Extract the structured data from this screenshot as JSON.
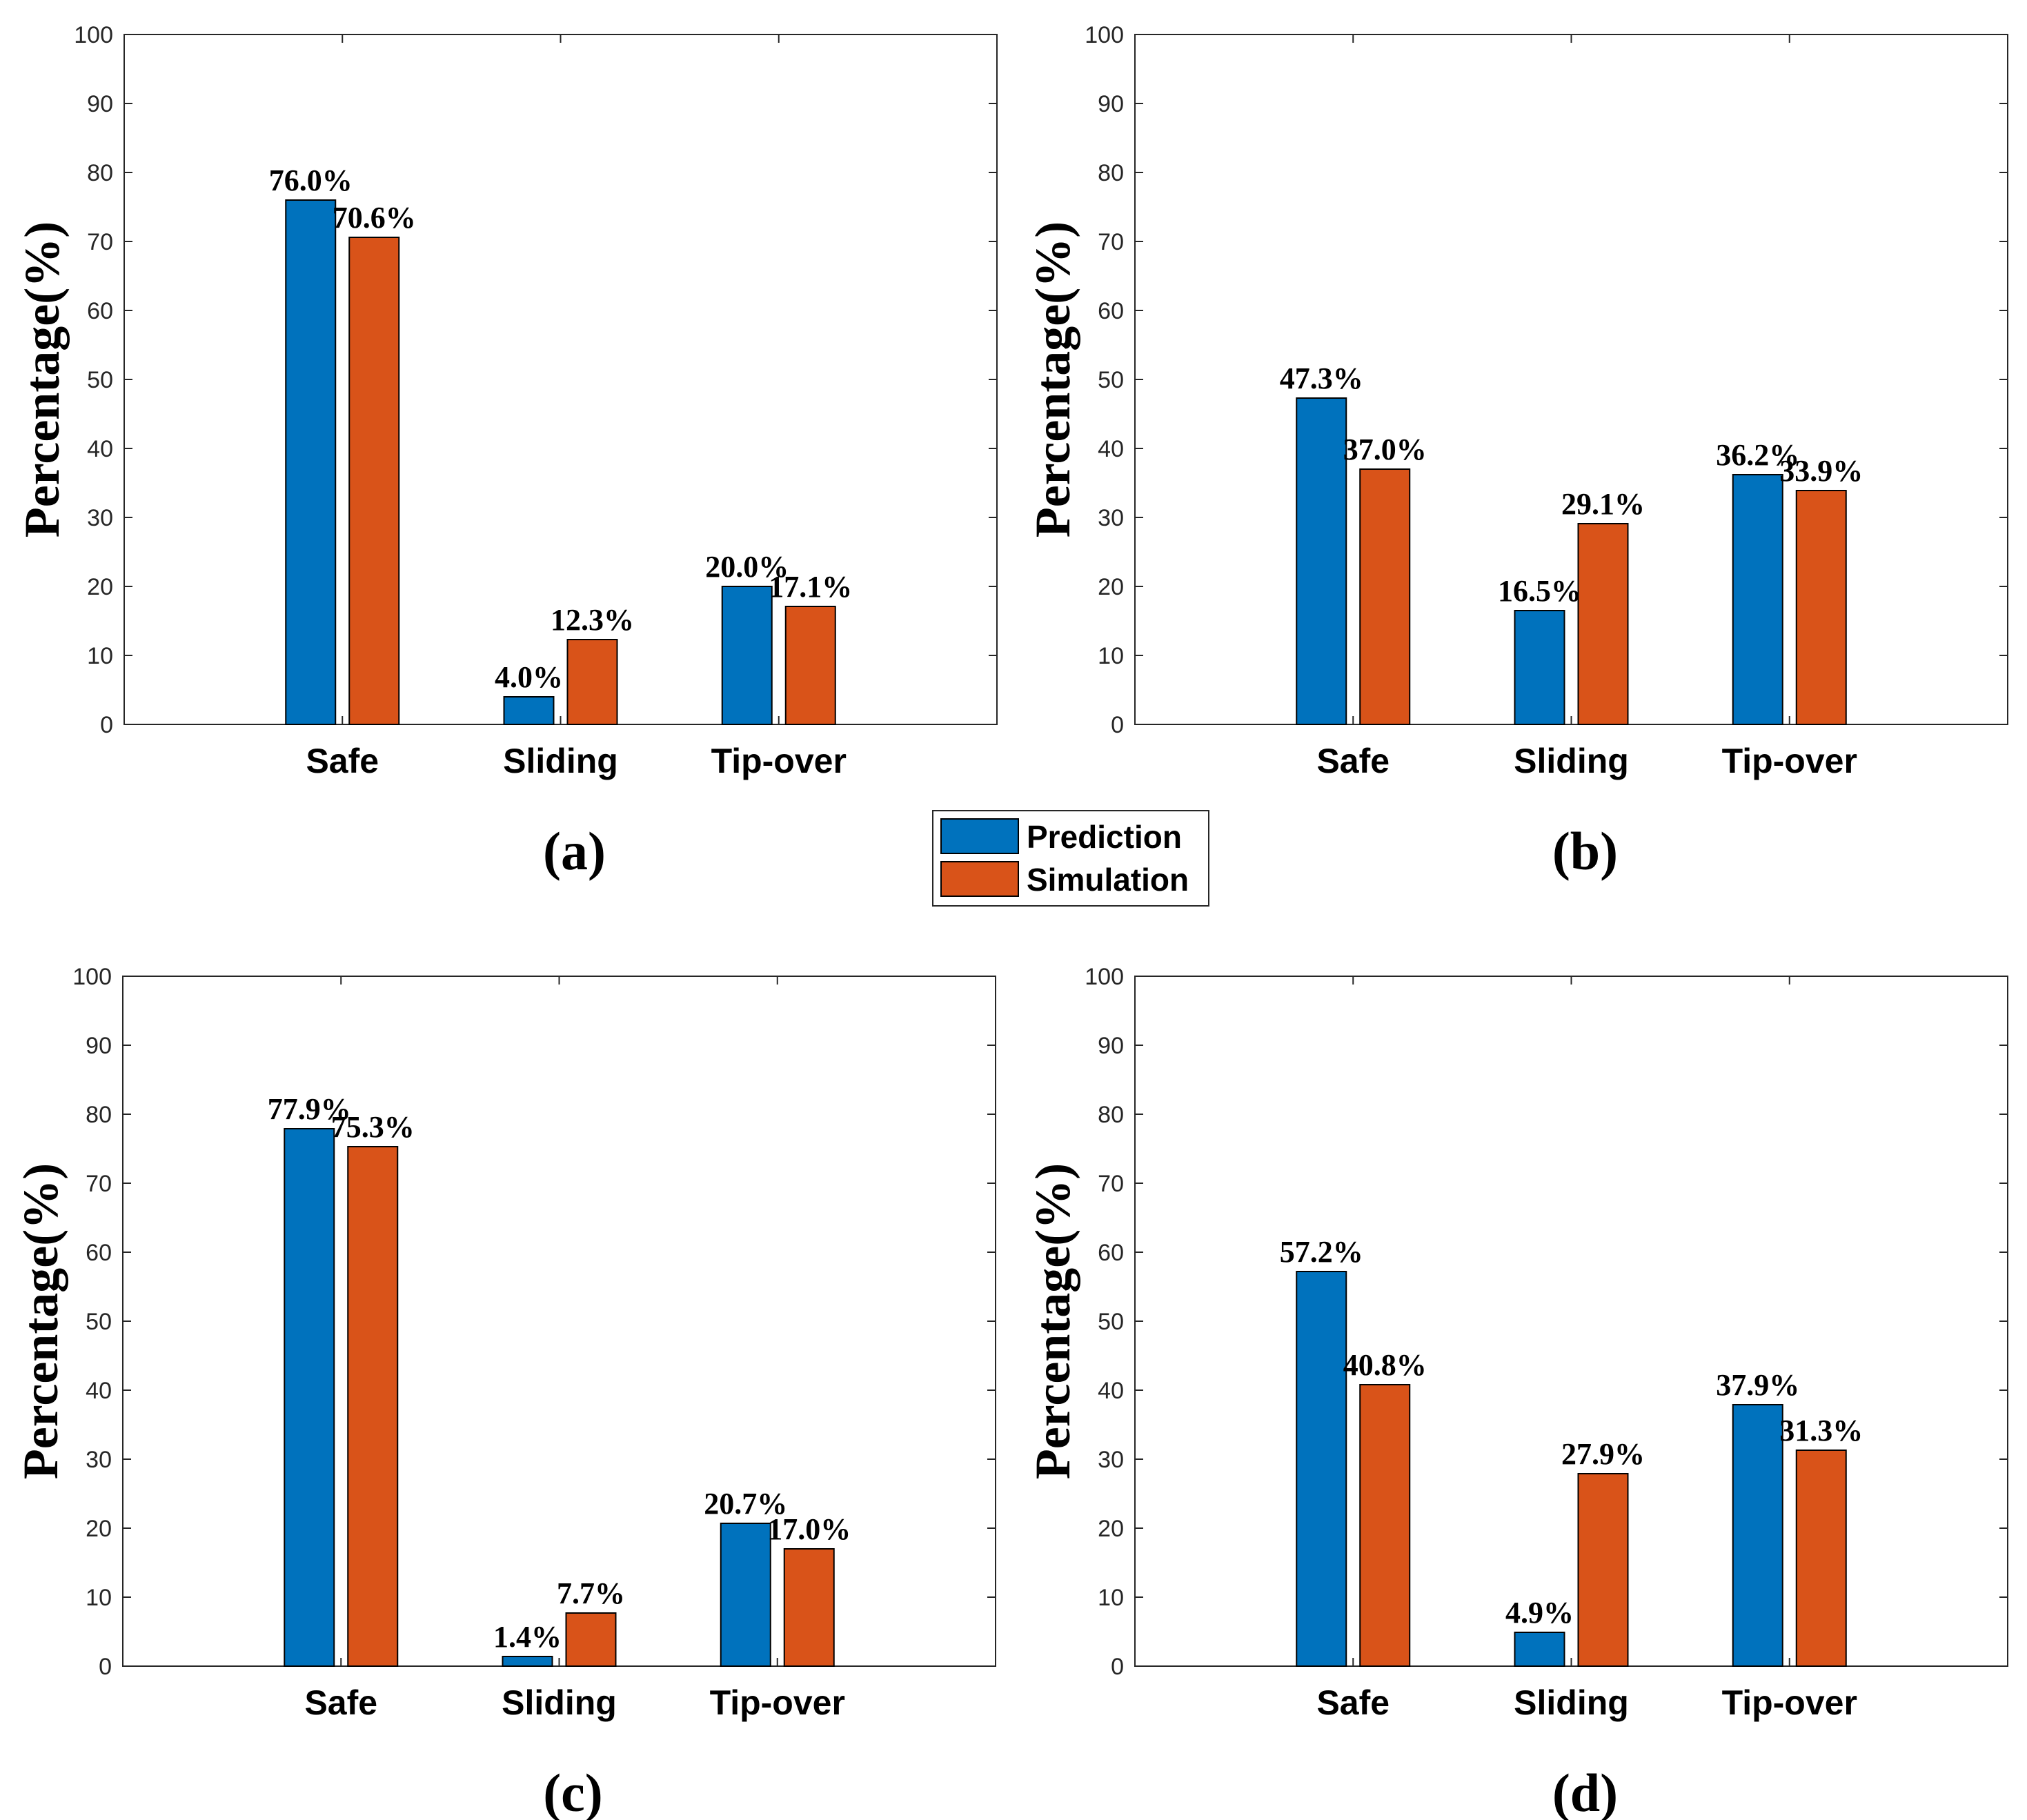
{
  "chart_data": [
    {
      "type": "bar",
      "panel": "(a)",
      "categories": [
        "Safe",
        "Sliding",
        "Tip-over"
      ],
      "series": [
        {
          "name": "Prediction",
          "values": [
            76.0,
            4.0,
            20.0
          ],
          "labels": [
            "76.0%",
            "4.0%",
            "20.0%"
          ]
        },
        {
          "name": "Simulation",
          "values": [
            70.6,
            12.3,
            17.1
          ],
          "labels": [
            "70.6%",
            "12.3%",
            "17.1%"
          ]
        }
      ],
      "ylabel": "Percentage(%)",
      "ylim": [
        0,
        100
      ],
      "yticks": [
        "0",
        "10",
        "20",
        "30",
        "40",
        "50",
        "60",
        "70",
        "80",
        "90",
        "100"
      ]
    },
    {
      "type": "bar",
      "panel": "(b)",
      "categories": [
        "Safe",
        "Sliding",
        "Tip-over"
      ],
      "series": [
        {
          "name": "Prediction",
          "values": [
            47.3,
            16.5,
            36.2
          ],
          "labels": [
            "47.3%",
            "16.5%",
            "36.2%"
          ]
        },
        {
          "name": "Simulation",
          "values": [
            37.0,
            29.1,
            33.9
          ],
          "labels": [
            "37.0%",
            "29.1%",
            "33.9%"
          ]
        }
      ],
      "ylabel": "Percentage(%)",
      "ylim": [
        0,
        100
      ],
      "yticks": [
        "0",
        "10",
        "20",
        "30",
        "40",
        "50",
        "60",
        "70",
        "80",
        "90",
        "100"
      ]
    },
    {
      "type": "bar",
      "panel": "(c)",
      "categories": [
        "Safe",
        "Sliding",
        "Tip-over"
      ],
      "series": [
        {
          "name": "Prediction",
          "values": [
            77.9,
            1.4,
            20.7
          ],
          "labels": [
            "77.9%",
            "1.4%",
            "20.7%"
          ]
        },
        {
          "name": "Simulation",
          "values": [
            75.3,
            7.7,
            17.0
          ],
          "labels": [
            "75.3%",
            "7.7%",
            "17.0%"
          ]
        }
      ],
      "ylabel": "Percentage(%)",
      "ylim": [
        0,
        100
      ],
      "yticks": [
        "0",
        "10",
        "20",
        "30",
        "40",
        "50",
        "60",
        "70",
        "80",
        "90",
        "100"
      ]
    },
    {
      "type": "bar",
      "panel": "(d)",
      "categories": [
        "Safe",
        "Sliding",
        "Tip-over"
      ],
      "series": [
        {
          "name": "Prediction",
          "values": [
            57.2,
            4.9,
            37.9
          ],
          "labels": [
            "57.2%",
            "4.9%",
            "37.9%"
          ]
        },
        {
          "name": "Simulation",
          "values": [
            40.8,
            27.9,
            31.3
          ],
          "labels": [
            "40.8%",
            "27.9%",
            "31.3%"
          ]
        }
      ],
      "ylabel": "Percentage(%)",
      "ylim": [
        0,
        100
      ],
      "yticks": [
        "0",
        "10",
        "20",
        "30",
        "40",
        "50",
        "60",
        "70",
        "80",
        "90",
        "100"
      ]
    }
  ],
  "legend": {
    "placement": "center",
    "entries": [
      {
        "name": "Prediction",
        "color": "#0072BD"
      },
      {
        "name": "Simulation",
        "color": "#D95319"
      }
    ]
  },
  "colors": {
    "prediction": "#0072BD",
    "simulation": "#D95319",
    "axis": "#262626",
    "bar_edge": "#000000"
  }
}
